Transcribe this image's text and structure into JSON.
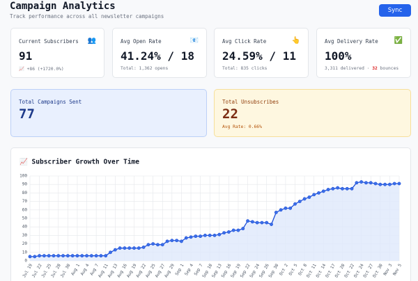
{
  "header": {
    "title": "Campaign Analytics",
    "subtitle": "Track performance across all newsletter campaigns",
    "sync_button": "Sync"
  },
  "stats": [
    {
      "label": "Current Subscribers",
      "icon": "👥",
      "value": "91",
      "detail": "📈 +86 (+1720.0%)"
    },
    {
      "label": "Avg Open Rate",
      "icon": "📧",
      "value": "41.24% / 18",
      "detail": "Total: 1,362 opens"
    },
    {
      "label": "Avg Click Rate",
      "icon": "👆",
      "value": "24.59% / 11",
      "detail": "Total: 835 clicks"
    },
    {
      "label": "Avg Delivery Rate",
      "icon": "✅",
      "value": "100%",
      "detail_parts": [
        "3,311 delivered · ",
        "32",
        " bounces"
      ]
    }
  ],
  "summary": [
    {
      "label": "Total Campaigns Sent",
      "value": "77"
    },
    {
      "label": "Total Unsubscribes",
      "value": "22",
      "detail": "Avg Rate: 0.66%"
    }
  ],
  "chart_data": {
    "type": "line",
    "title": "📈 Subscriber Growth Over Time",
    "categories": [
      "Jul 19",
      null,
      "Jul 22",
      null,
      "Jul 25",
      null,
      "Jul 28",
      null,
      "Jul 30",
      null,
      "Aug 1",
      null,
      "Aug 4",
      null,
      "Aug 7",
      null,
      "Aug 11",
      null,
      "Aug 13",
      null,
      "Aug 16",
      null,
      "Aug 19",
      null,
      "Aug 22",
      null,
      "Aug 25",
      null,
      "Aug 27",
      null,
      "Aug 29",
      null,
      "Sep 1",
      null,
      "Sep 4",
      null,
      "Sep 7",
      null,
      "Sep 10",
      null,
      "Sep 13",
      null,
      "Sep 16",
      null,
      "Sep 19",
      null,
      "Sep 22",
      null,
      "Sep 24",
      null,
      "Sep 26",
      null,
      "Sep 30",
      null,
      "Oct 2",
      null,
      "Oct 5",
      null,
      "Oct 8",
      null,
      "Oct 11",
      null,
      "Oct 14",
      null,
      "Oct 17",
      null,
      "Oct 20",
      null,
      "Oct 22",
      null,
      "Oct 24",
      null,
      "Oct 27",
      null,
      "Oct 30",
      null,
      "Nov 3",
      null,
      "Nov 5"
    ],
    "values": [
      5,
      5,
      6,
      6,
      6,
      6,
      6,
      6,
      6,
      6,
      6,
      6,
      6,
      6,
      6,
      6,
      6,
      10,
      13,
      15,
      15,
      15,
      15,
      15,
      16,
      19,
      20,
      19,
      19,
      23,
      24,
      24,
      23,
      27,
      28,
      29,
      29,
      30,
      30,
      30,
      31,
      33,
      34,
      36,
      36,
      38,
      47,
      46,
      45,
      45,
      45,
      43,
      57,
      60,
      62,
      62,
      67,
      70,
      73,
      75,
      78,
      80,
      82,
      84,
      85,
      86,
      85,
      85,
      85,
      92,
      93,
      92,
      92,
      91,
      90,
      90,
      90,
      91,
      91
    ],
    "color": "#1d4ed8",
    "fill_color": "#dfe8fb",
    "ylim": [
      0,
      100
    ],
    "yticks": [
      0,
      10,
      20,
      30,
      40,
      50,
      60,
      70,
      80,
      90,
      100
    ],
    "grid": true
  }
}
